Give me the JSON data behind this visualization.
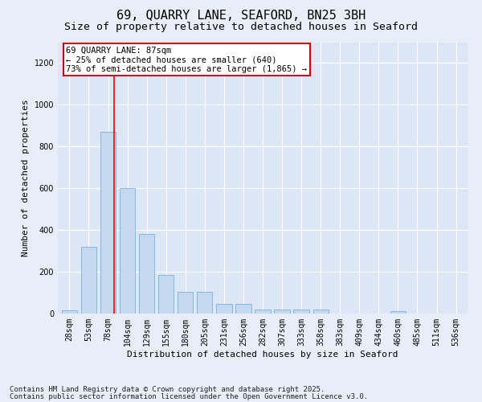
{
  "title": "69, QUARRY LANE, SEAFORD, BN25 3BH",
  "subtitle": "Size of property relative to detached houses in Seaford",
  "xlabel": "Distribution of detached houses by size in Seaford",
  "ylabel": "Number of detached properties",
  "categories": [
    "28sqm",
    "53sqm",
    "78sqm",
    "104sqm",
    "129sqm",
    "155sqm",
    "180sqm",
    "205sqm",
    "231sqm",
    "256sqm",
    "282sqm",
    "307sqm",
    "333sqm",
    "358sqm",
    "383sqm",
    "409sqm",
    "434sqm",
    "460sqm",
    "485sqm",
    "511sqm",
    "536sqm"
  ],
  "values": [
    15,
    320,
    870,
    600,
    380,
    185,
    105,
    105,
    45,
    45,
    20,
    18,
    18,
    20,
    0,
    0,
    0,
    12,
    0,
    0,
    0
  ],
  "bar_color": "#c5d8f0",
  "bar_edge_color": "#6aaad4",
  "bar_width": 0.8,
  "ylim": [
    0,
    1300
  ],
  "yticks": [
    0,
    200,
    400,
    600,
    800,
    1000,
    1200
  ],
  "red_line_x": 2.3,
  "annotation_text": "69 QUARRY LANE: 87sqm\n← 25% of detached houses are smaller (640)\n73% of semi-detached houses are larger (1,865) →",
  "annotation_box_color": "#ffffff",
  "annotation_box_edge": "#cc0000",
  "background_color": "#e8eef8",
  "plot_bg_color": "#dce6f5",
  "footer_line1": "Contains HM Land Registry data © Crown copyright and database right 2025.",
  "footer_line2": "Contains public sector information licensed under the Open Government Licence v3.0.",
  "grid_color": "#ffffff",
  "title_fontsize": 11,
  "subtitle_fontsize": 9.5,
  "axis_label_fontsize": 8,
  "tick_fontsize": 7,
  "footer_fontsize": 6.5,
  "annotation_fontsize": 7.5
}
